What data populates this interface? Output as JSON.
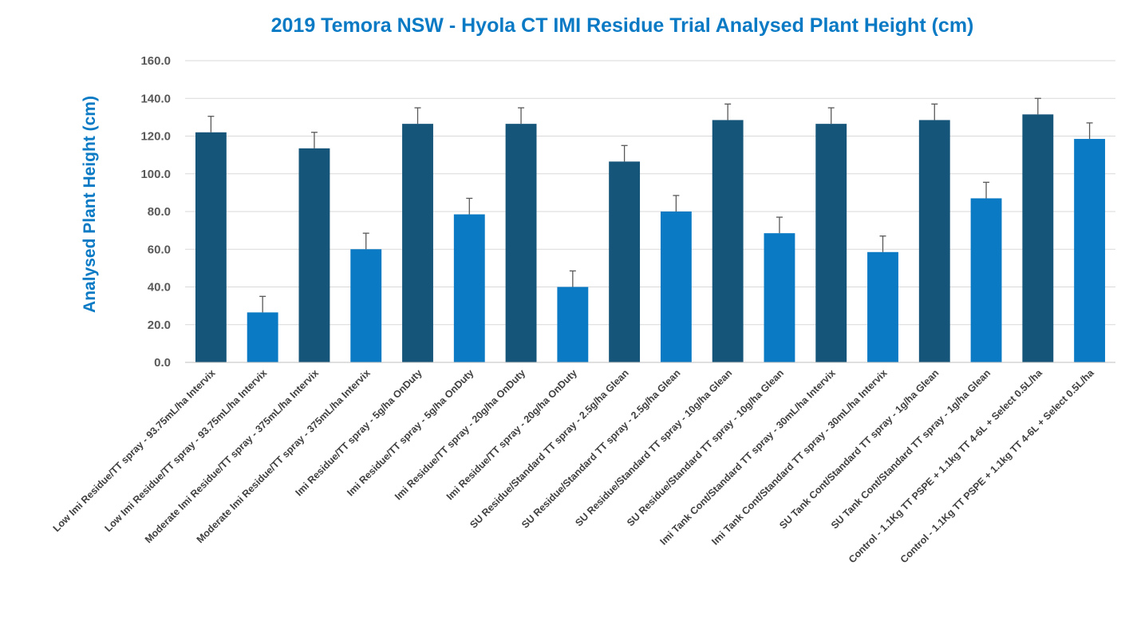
{
  "chart_data": {
    "type": "bar",
    "title": "2019 Temora NSW - Hyola CT IMI Residue Trial Analysed Plant Height (cm)",
    "ylabel": "Analysed Plant Height (cm)",
    "xlabel": "",
    "ylim": [
      0,
      160
    ],
    "yticks": [
      "0.0",
      "20.0",
      "40.0",
      "60.0",
      "80.0",
      "100.0",
      "120.0",
      "140.0",
      "160.0"
    ],
    "grid": true,
    "legend": "none",
    "categories": [
      "Low Imi Residue/TT spray - 93.75mL/ha Intervix",
      "Low Imi Residue/TT spray - 93.75mL/ha Intervix",
      "Moderate Imi Residue/TT spray - 375mL/ha Intervix",
      "Moderate Imi Residue/TT spray - 375mL/ha Intervix",
      "Imi Residue/TT spray - 5g/ha OnDuty",
      "Imi Residue/TT spray - 5g/ha OnDuty",
      "Imi Residue/TT spray - 20g/ha OnDuty",
      "Imi Residue/TT spray - 20g/ha OnDuty",
      "SU Residue/Standard TT spray - 2.5g/ha Glean",
      "SU Residue/Standard TT spray - 2.5g/ha Glean",
      "SU Residue/Standard TT spray - 10g/ha Glean",
      "SU Residue/Standard TT spray - 10g/ha Glean",
      "Imi Tank Cont/Standard TT spray - 30mL/ha Intervix",
      "Imi Tank Cont/Standard TT spray - 30mL/ha Intervix",
      "SU Tank Cont/Standard TT spray - 1g/ha Glean",
      "SU Tank Cont/Standard TT spray - 1g/ha Glean",
      "Control - 1.1Kg TT PSPE + 1.1kg TT 4-6L + Select 0.5L/ha",
      "Control - 1.1Kg TT PSPE + 1.1kg TT 4-6L + Select 0.5L/ha"
    ],
    "values": [
      122,
      26.5,
      113.5,
      60,
      126.5,
      78.5,
      126.5,
      40,
      106.5,
      80,
      128.5,
      68.5,
      126.5,
      58.5,
      128.5,
      87,
      131.5,
      118.5
    ],
    "error": 8.5,
    "colors": [
      "#16557a",
      "#0a7ac5"
    ],
    "error_color": "#595959",
    "grid_color": "#d9d9d9",
    "axis_color": "#bfbfbf"
  }
}
